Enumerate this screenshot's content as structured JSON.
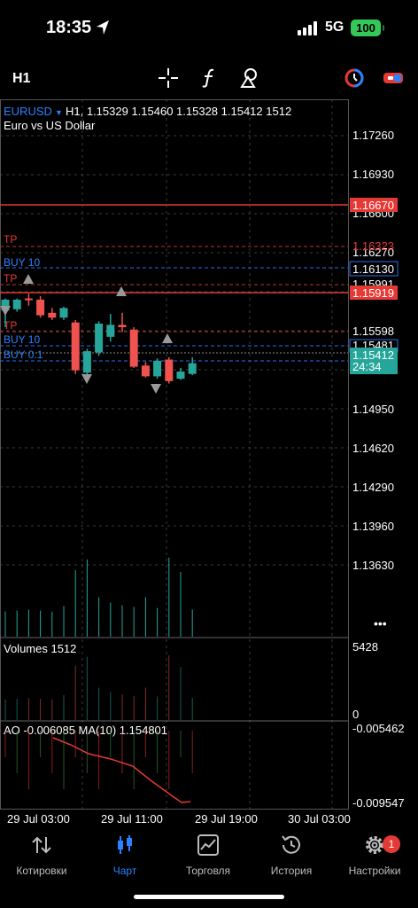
{
  "status": {
    "time": "18:35",
    "network": "5G",
    "battery": "100"
  },
  "toolbar": {
    "timeframe": "H1"
  },
  "header": {
    "symbol": "EURUSD",
    "quote": "H1, 1.15329 1.15460 1.15328 1.15412 1512",
    "description": "Euro vs US Dollar"
  },
  "price_axis": {
    "ticks": [
      "1.17260",
      "1.16930",
      "1.16600",
      "1.16270",
      "1.15991",
      "1.15598",
      "1.15481",
      "1.14950",
      "1.14620",
      "1.14290",
      "1.13960",
      "1.13630"
    ]
  },
  "levels": {
    "red_top": "1.16670",
    "tp1_label": "TP",
    "tp1_value": "1.16323",
    "buy1_label": "BUY 10",
    "buy1_value": "1.16130",
    "tp2_label": "TP",
    "red_mid": "1.15919",
    "tp3_label": "TP",
    "tp3_value": "1.15598",
    "buy2_label": "BUY 10",
    "buy3_label": "BUY 0.1",
    "current_price": "1.15412",
    "timer": "24:34"
  },
  "volumes": {
    "title": "Volumes 1512",
    "max": "5428",
    "min": "0"
  },
  "ao": {
    "title": "AO -0.006085 MA(10) 1.154801",
    "top": "-0.005462",
    "bottom": "-0.009547"
  },
  "time_axis": {
    "labels": [
      "29 Jul 03:00",
      "29 Jul 11:00",
      "29 Jul 19:00",
      "30 Jul 03:00"
    ]
  },
  "more_label": "•••",
  "colors": {
    "bull": "#26a69a",
    "bear": "#ef5350",
    "level": "#e53935",
    "buy": "#2a6ef0",
    "accent": "#2a82ff"
  },
  "candles": [
    {
      "o": 1.1586,
      "h": 1.1596,
      "l": 1.1572,
      "c": 1.1595
    },
    {
      "o": 1.1587,
      "h": 1.1596,
      "l": 1.1585,
      "c": 1.1595
    },
    {
      "o": 1.1596,
      "h": 1.16,
      "l": 1.159,
      "c": 1.1595
    },
    {
      "o": 1.1595,
      "h": 1.1598,
      "l": 1.158,
      "c": 1.1582
    },
    {
      "o": 1.1584,
      "h": 1.1588,
      "l": 1.1578,
      "c": 1.158
    },
    {
      "o": 1.158,
      "h": 1.1589,
      "l": 1.1578,
      "c": 1.1588
    },
    {
      "o": 1.1576,
      "h": 1.1578,
      "l": 1.1533,
      "c": 1.1536
    },
    {
      "o": 1.1534,
      "h": 1.1554,
      "l": 1.153,
      "c": 1.1552
    },
    {
      "o": 1.1551,
      "h": 1.1577,
      "l": 1.1548,
      "c": 1.1575
    },
    {
      "o": 1.1564,
      "h": 1.1583,
      "l": 1.156,
      "c": 1.1574
    },
    {
      "o": 1.1574,
      "h": 1.1584,
      "l": 1.1568,
      "c": 1.1572
    },
    {
      "o": 1.157,
      "h": 1.1572,
      "l": 1.1538,
      "c": 1.1539
    },
    {
      "o": 1.154,
      "h": 1.1543,
      "l": 1.153,
      "c": 1.1531
    },
    {
      "o": 1.1531,
      "h": 1.1546,
      "l": 1.1529,
      "c": 1.1544
    },
    {
      "o": 1.1545,
      "h": 1.1547,
      "l": 1.1525,
      "c": 1.1527
    },
    {
      "o": 1.1529,
      "h": 1.1538,
      "l": 1.1528,
      "c": 1.1535
    },
    {
      "o": 1.1533,
      "h": 1.1547,
      "l": 1.1532,
      "c": 1.1542
    }
  ],
  "vol_values": [
    1400,
    1450,
    1500,
    1450,
    1400,
    1700,
    3700,
    4300,
    2200,
    1900,
    1750,
    1650,
    2200,
    1600,
    4400,
    3600,
    1512
  ]
}
